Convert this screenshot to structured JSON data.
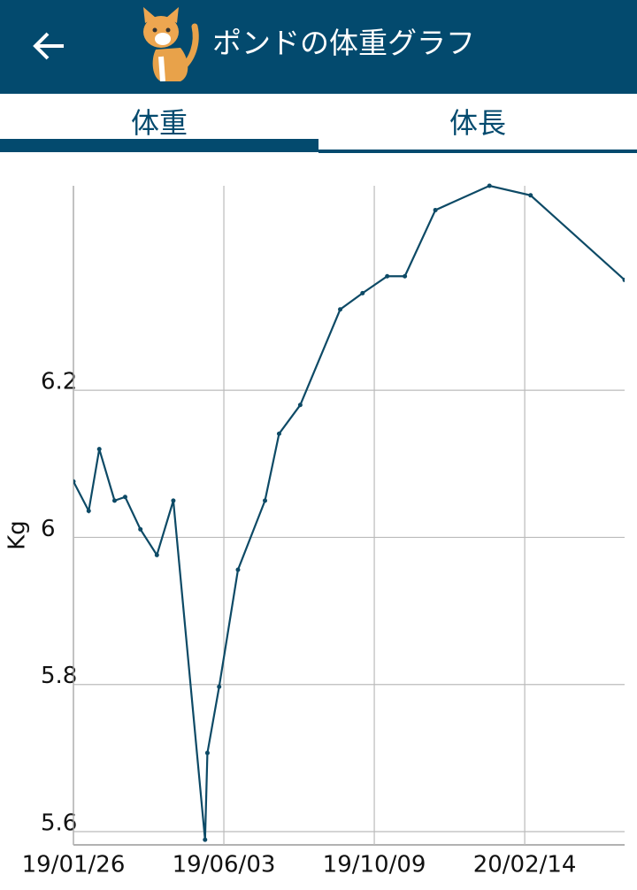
{
  "header": {
    "title": "ポンドの体重グラフ"
  },
  "tabs": [
    "体重",
    "体長"
  ],
  "chart_data": {
    "type": "line",
    "ylabel": "Kg",
    "x": [
      "2019-01-26",
      "2019-02-08",
      "2019-02-17",
      "2019-03-02",
      "2019-03-11",
      "2019-03-24",
      "2019-04-07",
      "2019-04-21",
      "2019-05-18",
      "2019-05-20",
      "2019-05-30",
      "2019-06-15",
      "2019-07-08",
      "2019-07-20",
      "2019-08-07",
      "2019-09-10",
      "2019-09-29",
      "2019-10-20",
      "2019-11-04",
      "2019-11-30",
      "2020-01-15",
      "2020-02-19",
      "2020-05-09"
    ],
    "series": [
      {
        "name": "体重",
        "color": "#0d4a66",
        "values": [
          6.076,
          6.036,
          6.12,
          6.05,
          6.055,
          6.011,
          5.976,
          6.05,
          5.589,
          5.707,
          5.797,
          5.956,
          6.05,
          6.141,
          6.18,
          6.31,
          6.332,
          6.355,
          6.355,
          6.445,
          6.478,
          6.465,
          6.35
        ]
      }
    ],
    "xlim": [
      "2019-01-26",
      "2020-05-09"
    ],
    "xticks": [
      {
        "value": "2019-01-26",
        "label": "19/01/26"
      },
      {
        "value": "2019-06-03",
        "label": "19/06/03"
      },
      {
        "value": "2019-10-09",
        "label": "19/10/09"
      },
      {
        "value": "2020-02-14",
        "label": "20/02/14"
      }
    ],
    "ylim": [
      5.582,
      6.478
    ],
    "yticks": [
      5.6,
      5.8,
      6,
      6.2
    ],
    "grid": true
  }
}
